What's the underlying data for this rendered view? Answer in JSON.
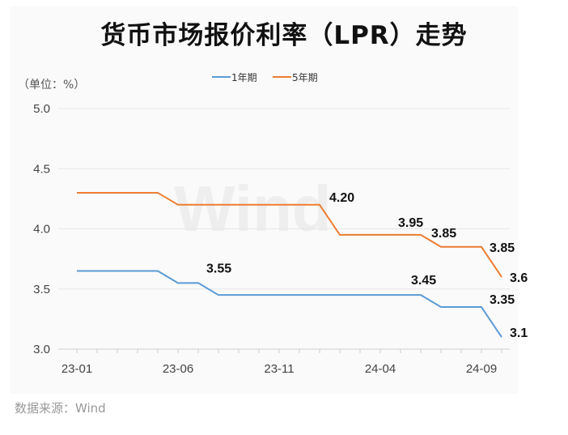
{
  "chart_data": {
    "type": "line",
    "title": "货币市场报价利率（LPR）走势",
    "ylabel": "（单位：%）",
    "source": "数据来源：Wind",
    "watermark": "Wind",
    "x": [
      "23-01",
      "23-02",
      "23-03",
      "23-04",
      "23-05",
      "23-06",
      "23-07",
      "23-08",
      "23-09",
      "23-10",
      "23-11",
      "23-12",
      "24-01",
      "24-02",
      "24-03",
      "24-04",
      "24-05",
      "24-06",
      "24-07",
      "24-08",
      "24-09",
      "24-10"
    ],
    "xticks": [
      "23-01",
      "23-06",
      "23-11",
      "24-04",
      "24-09"
    ],
    "yticks": [
      "3.0",
      "3.5",
      "4.0",
      "4.5",
      "5.0"
    ],
    "ylim": [
      3.0,
      5.0
    ],
    "legend_position": "top-center",
    "series": [
      {
        "name": "1年期",
        "color": "#5b9bd5",
        "values": [
          3.65,
          3.65,
          3.65,
          3.65,
          3.65,
          3.55,
          3.55,
          3.45,
          3.45,
          3.45,
          3.45,
          3.45,
          3.45,
          3.45,
          3.45,
          3.45,
          3.45,
          3.45,
          3.35,
          3.35,
          3.35,
          3.1
        ],
        "labels": [
          {
            "i": 6,
            "text": "3.55"
          },
          {
            "i": 17,
            "text": "3.45"
          },
          {
            "i": 20,
            "text": "3.35"
          },
          {
            "i": 21,
            "text": "3.1"
          }
        ]
      },
      {
        "name": "5年期",
        "color": "#ed7d31",
        "values": [
          4.3,
          4.3,
          4.3,
          4.3,
          4.3,
          4.2,
          4.2,
          4.2,
          4.2,
          4.2,
          4.2,
          4.2,
          4.2,
          3.95,
          3.95,
          3.95,
          3.95,
          3.95,
          3.85,
          3.85,
          3.85,
          3.6
        ],
        "labels": [
          {
            "i": 12,
            "text": "4.20"
          },
          {
            "i": 17,
            "text": "3.95"
          },
          {
            "i": 18,
            "text": "3.85"
          },
          {
            "i": 20,
            "text": "3.85"
          },
          {
            "i": 21,
            "text": "3.6"
          }
        ]
      }
    ]
  }
}
